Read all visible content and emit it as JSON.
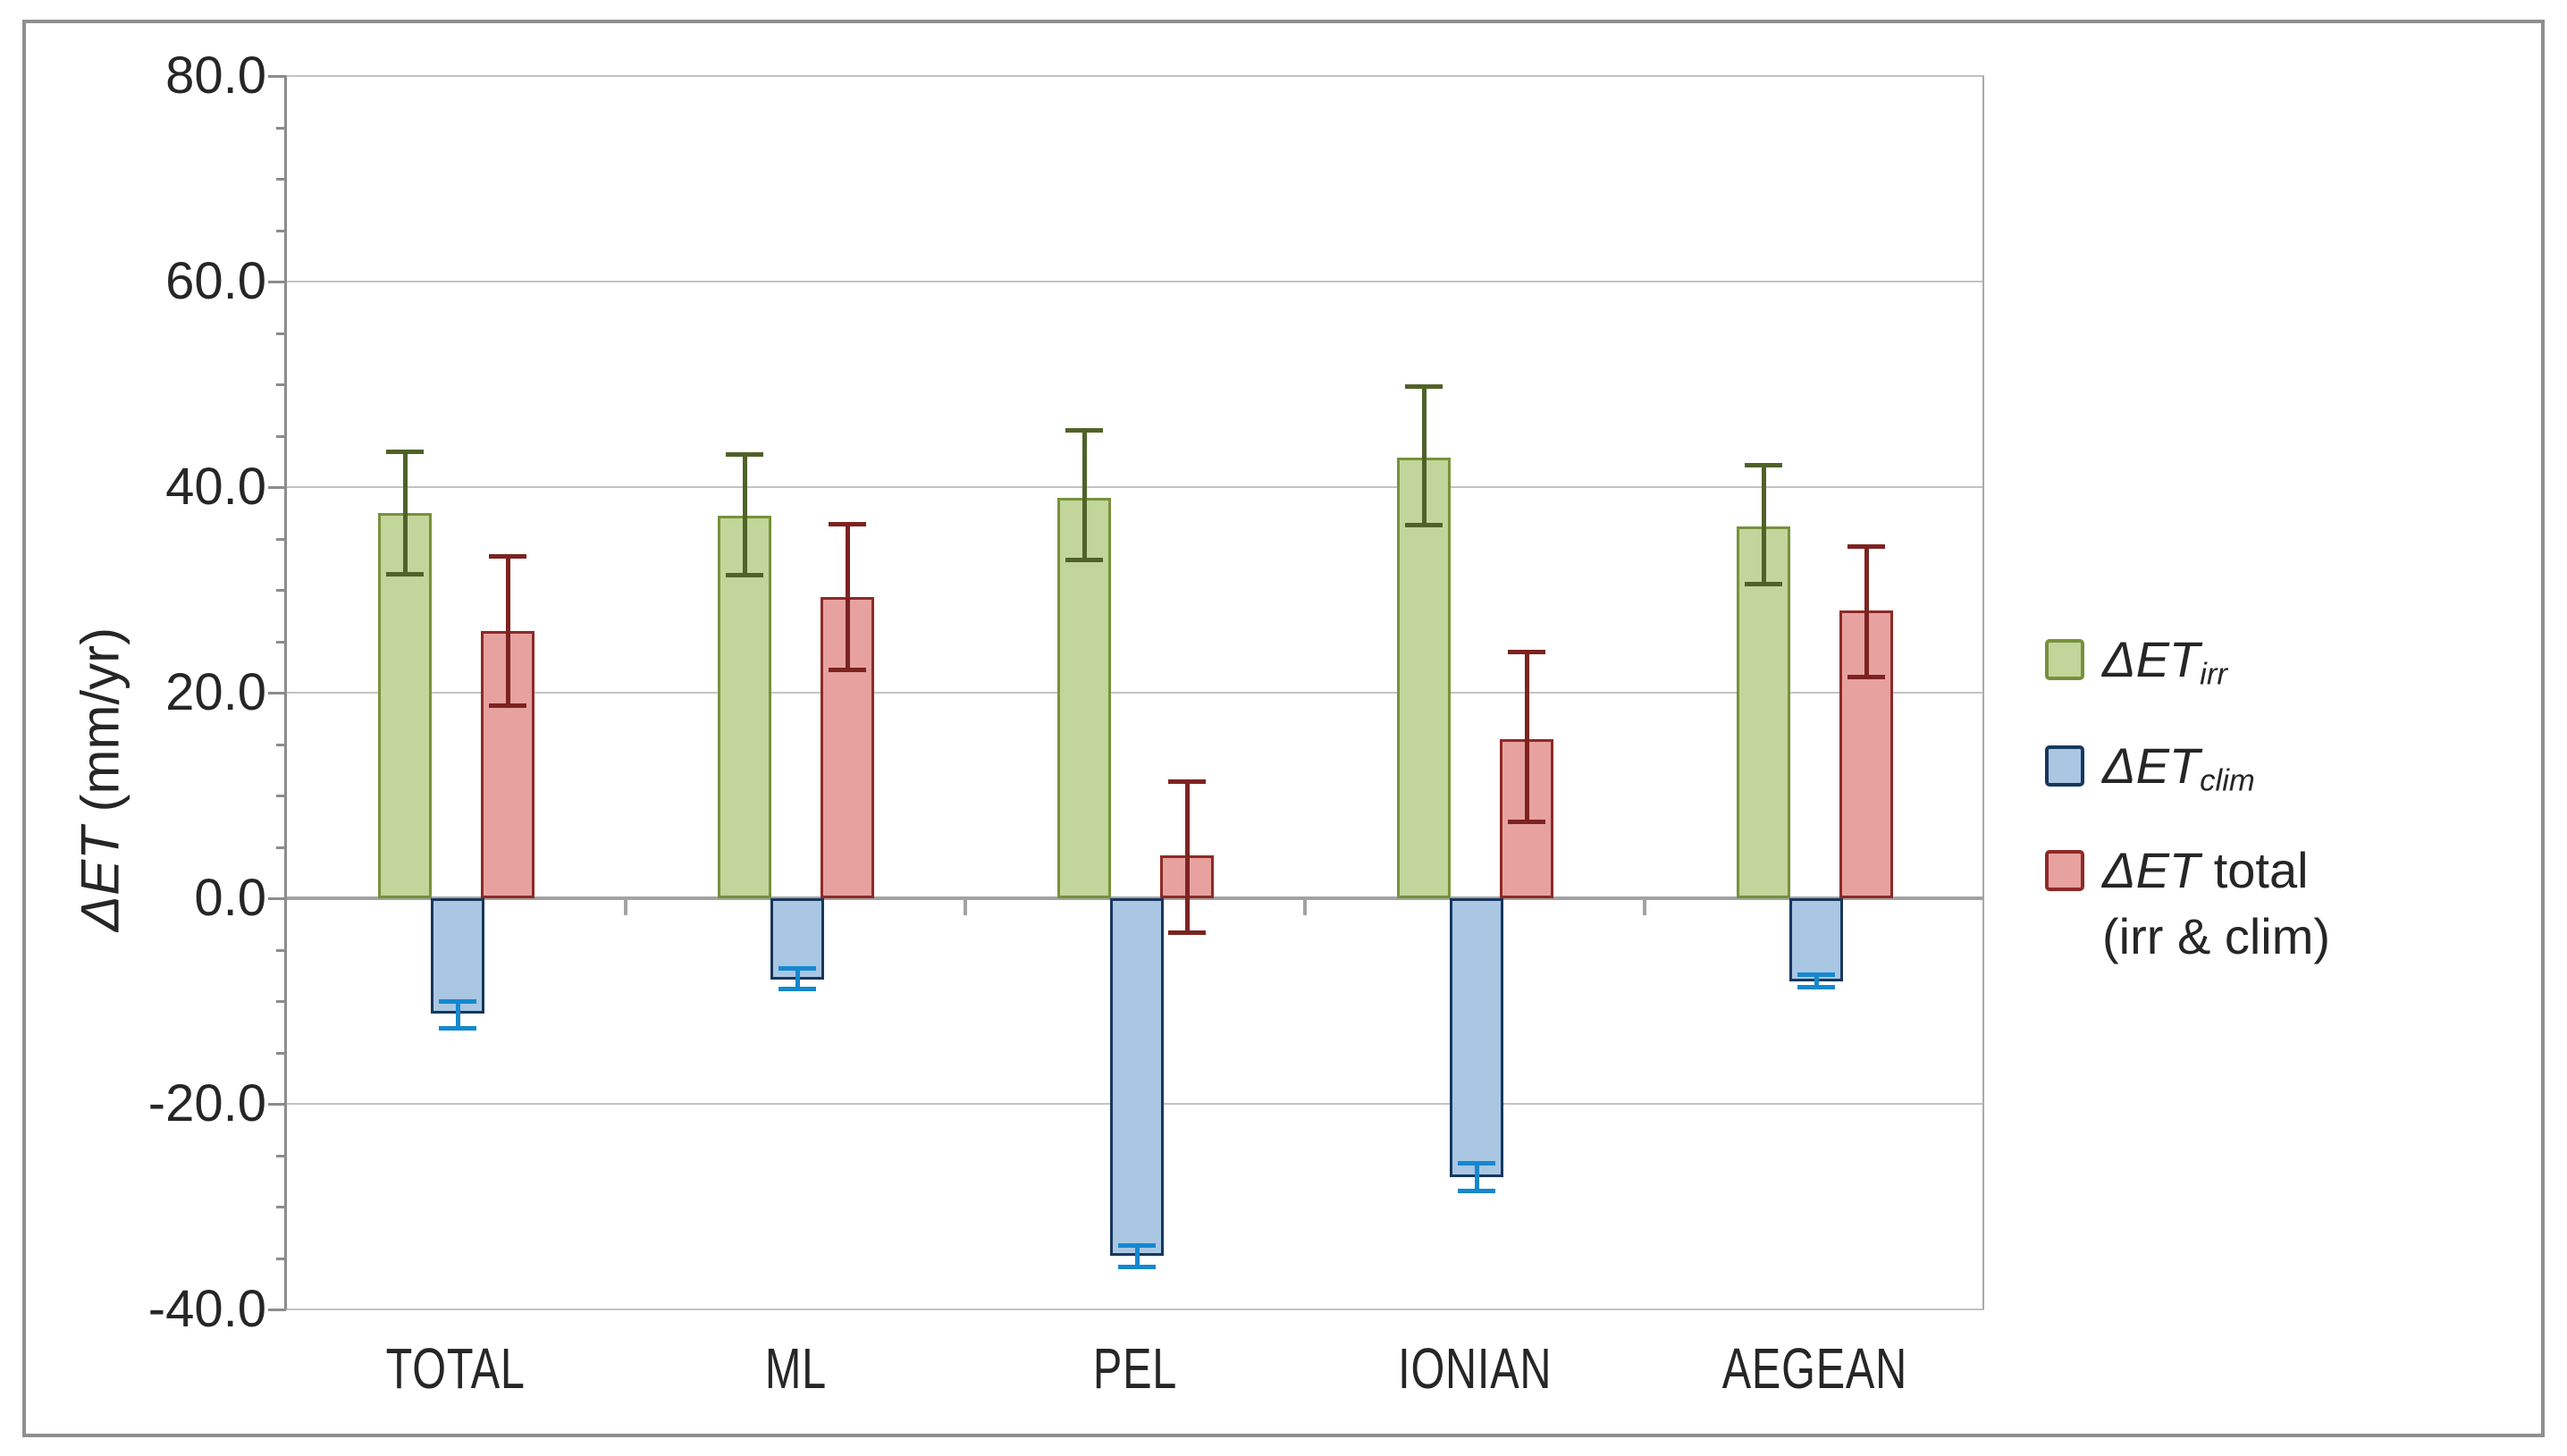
{
  "y_axis": {
    "title_italic": "ΔET",
    "title_rest": " (mm/yr)",
    "tick_labels": [
      "80.0",
      "60.0",
      "40.0",
      "20.0",
      "0.0",
      "-20.0",
      "-40.0"
    ]
  },
  "x_axis": {
    "categories": [
      "TOTAL",
      "ML",
      "PEL",
      "IONIAN",
      "AEGEAN"
    ]
  },
  "legend": {
    "entries": [
      {
        "pre": "ΔET",
        "sub": "irr",
        "post": "",
        "line2": "",
        "fill": "#C2D59A",
        "border": "#76923C"
      },
      {
        "pre": "ΔET",
        "sub": "clim",
        "post": "",
        "line2": "",
        "fill": "#A9C6E3",
        "border": "#17375D"
      },
      {
        "pre": "ΔET",
        "sub": "",
        "post": " total",
        "line2": "(irr & clim)",
        "fill": "#E7A2A0",
        "border": "#8E2A27"
      }
    ]
  },
  "chart_data": {
    "type": "bar",
    "title": "",
    "ylabel": "ΔET (mm/yr)",
    "xlabel": "",
    "ylim": [
      -40,
      80
    ],
    "y_major": 20,
    "y_minor": 5,
    "grid": true,
    "legend_position": "right",
    "categories": [
      "TOTAL",
      "ML",
      "PEL",
      "IONIAN",
      "AEGEAN"
    ],
    "series": [
      {
        "name": "ΔET_irr",
        "fill": "#C2D59A",
        "border": "#76923C",
        "error_color": "#4F6228",
        "values": [
          37.5,
          37.2,
          39.0,
          42.9,
          36.2
        ],
        "err_low": [
          31.5,
          31.4,
          32.9,
          36.3,
          30.5
        ],
        "err_high": [
          43.5,
          43.2,
          45.6,
          49.8,
          42.2
        ]
      },
      {
        "name": "ΔET_clim",
        "fill": "#A9C6E3",
        "border": "#17375D",
        "error_color": "#1588CE",
        "values": [
          -11.2,
          -7.9,
          -34.8,
          -27.1,
          -8.1
        ],
        "err_low": [
          -12.7,
          -8.9,
          -35.9,
          -28.5,
          -8.7
        ],
        "err_high": [
          -10.0,
          -6.8,
          -33.7,
          -25.7,
          -7.4
        ]
      },
      {
        "name": "ΔET total (irr & clim)",
        "fill": "#E7A2A0",
        "border": "#8E2A27",
        "error_color": "#7C2321",
        "values": [
          26.0,
          29.3,
          4.2,
          15.5,
          28.0
        ],
        "err_low": [
          18.7,
          22.2,
          -3.4,
          7.4,
          21.5
        ],
        "err_high": [
          33.3,
          36.4,
          11.4,
          24.0,
          34.3
        ]
      }
    ]
  },
  "colors": {
    "gridline": "#C3C3C3",
    "zero_line": "#A3A3A3",
    "axis_line": "#8C8C8C",
    "plot_border": "#ABABAB",
    "figure_border": "#8F8F8F",
    "text": "#262626"
  }
}
